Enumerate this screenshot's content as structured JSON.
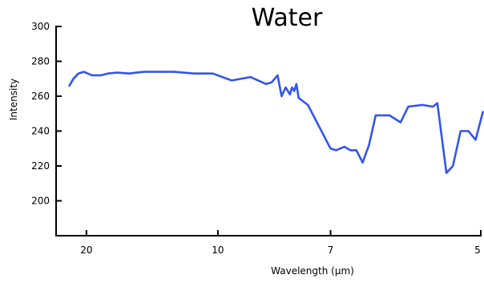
{
  "chart_data": {
    "type": "line",
    "title": "Water",
    "xlabel": "Wavelength (µm)",
    "ylabel": "Intensity",
    "x_scale": "reciprocal",
    "xlim": [
      26,
      5
    ],
    "ylim": [
      180,
      300
    ],
    "yticks": [
      200,
      220,
      240,
      260,
      280,
      300
    ],
    "xticks": [
      20,
      10,
      7,
      5
    ],
    "grid": false,
    "colors": {
      "series": "#3355ee"
    },
    "series": [
      {
        "x": [
          23.0,
          22.2,
          21.3,
          20.4,
          19.2,
          18.0,
          17.2,
          16.2,
          15.1,
          14.5,
          13.9,
          13.0,
          12.0,
          11.0,
          10.2,
          9.5,
          8.9,
          8.45,
          8.3,
          8.15,
          8.05,
          7.95,
          7.85,
          7.8,
          7.75,
          7.7,
          7.65,
          7.6,
          7.55,
          7.45,
          7.0,
          6.9,
          6.75,
          6.65,
          6.55,
          6.45,
          6.35,
          6.25,
          6.05,
          5.9,
          5.8,
          5.63,
          5.5,
          5.45,
          5.35,
          5.28,
          5.2,
          5.12,
          5.05,
          4.98
        ],
        "y": [
          266,
          270,
          273,
          274,
          272,
          272,
          273,
          273.5,
          273,
          273.5,
          274,
          274,
          274,
          273,
          273,
          269,
          271,
          267,
          268,
          272,
          260,
          265,
          261,
          265,
          263,
          267,
          259,
          258,
          257,
          255,
          230,
          229,
          231,
          229,
          229,
          222,
          232,
          249,
          249,
          245,
          254,
          255,
          254,
          256,
          216,
          220,
          240,
          240,
          235,
          251
        ]
      }
    ]
  }
}
